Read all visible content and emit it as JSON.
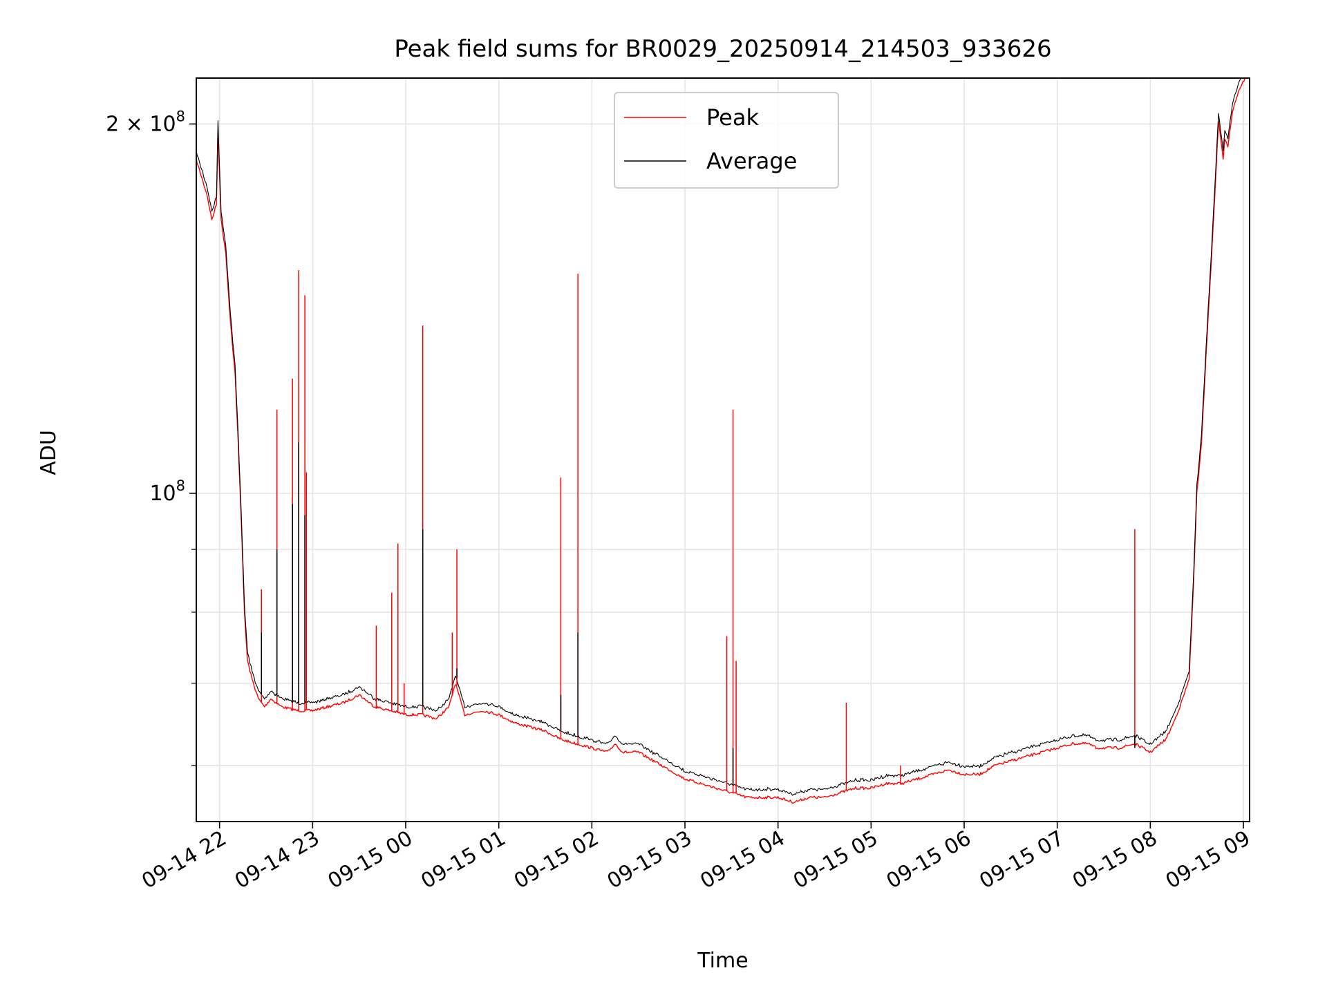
{
  "chart_data": {
    "type": "line",
    "title": "Peak field sums for BR0029_20250914_214503_933626",
    "xlabel": "Time",
    "ylabel": "ADU",
    "y_scale": "log",
    "grid": true,
    "legend_position": "upper center",
    "xlim": [
      "2025-09-14 21:45",
      "2025-09-15 09:04"
    ],
    "ylim": [
      54000000,
      218000000
    ],
    "x_ticks": [
      {
        "t": "2025-09-14 22:00",
        "label": "09-14 22"
      },
      {
        "t": "2025-09-14 23:00",
        "label": "09-14 23"
      },
      {
        "t": "2025-09-15 00:00",
        "label": "09-15 00"
      },
      {
        "t": "2025-09-15 01:00",
        "label": "09-15 01"
      },
      {
        "t": "2025-09-15 02:00",
        "label": "09-15 02"
      },
      {
        "t": "2025-09-15 03:00",
        "label": "09-15 03"
      },
      {
        "t": "2025-09-15 04:00",
        "label": "09-15 04"
      },
      {
        "t": "2025-09-15 05:00",
        "label": "09-15 05"
      },
      {
        "t": "2025-09-15 06:00",
        "label": "09-15 06"
      },
      {
        "t": "2025-09-15 07:00",
        "label": "09-15 07"
      },
      {
        "t": "2025-09-15 08:00",
        "label": "09-15 08"
      },
      {
        "t": "2025-09-15 09:00",
        "label": "09-15 09"
      }
    ],
    "y_ticks": [
      {
        "value": 100000000,
        "base": "10",
        "exp": "8",
        "mantissa": ""
      },
      {
        "value": 200000000,
        "base": "10",
        "exp": "8",
        "mantissa": "2 × "
      }
    ],
    "y_minor_ticks": [
      60000000,
      70000000,
      80000000,
      90000000
    ],
    "series": [
      {
        "name": "Peak",
        "color": "#ff0000",
        "points": [
          [
            "2025-09-14 21:45",
            187000000
          ],
          [
            "2025-09-14 21:49",
            180000000
          ],
          [
            "2025-09-14 21:52",
            175000000
          ],
          [
            "2025-09-14 21:55",
            167000000
          ],
          [
            "2025-09-14 21:58",
            172000000
          ],
          [
            "2025-09-14 21:59",
            198000000
          ],
          [
            "2025-09-14 22:01",
            167000000
          ],
          [
            "2025-09-14 22:04",
            157000000
          ],
          [
            "2025-09-14 22:07",
            138000000
          ],
          [
            "2025-09-14 22:10",
            125000000
          ],
          [
            "2025-09-14 22:12",
            110000000
          ],
          [
            "2025-09-14 22:14",
            95000000
          ],
          [
            "2025-09-14 22:16",
            80000000
          ],
          [
            "2025-09-14 22:18",
            73000000
          ],
          [
            "2025-09-14 22:21",
            70500000
          ],
          [
            "2025-09-14 22:25",
            68000000
          ],
          [
            "2025-09-14 22:29",
            67000000
          ],
          [
            "2025-09-14 22:33",
            68000000
          ],
          [
            "2025-09-14 22:40",
            67000000
          ],
          [
            "2025-09-14 22:50",
            66500000
          ],
          [
            "2025-09-14 23:00",
            66500000
          ],
          [
            "2025-09-14 23:10",
            67000000
          ],
          [
            "2025-09-14 23:20",
            67500000
          ],
          [
            "2025-09-14 23:30",
            68500000
          ],
          [
            "2025-09-14 23:40",
            67000000
          ],
          [
            "2025-09-14 23:50",
            66500000
          ],
          [
            "2025-09-15 00:00",
            66000000
          ],
          [
            "2025-09-15 00:10",
            66000000
          ],
          [
            "2025-09-15 00:20",
            65500000
          ],
          [
            "2025-09-15 00:28",
            67000000
          ],
          [
            "2025-09-15 00:32",
            70000000
          ],
          [
            "2025-09-15 00:38",
            66000000
          ],
          [
            "2025-09-15 00:50",
            66500000
          ],
          [
            "2025-09-15 01:00",
            66000000
          ],
          [
            "2025-09-15 01:10",
            65000000
          ],
          [
            "2025-09-15 01:20",
            64500000
          ],
          [
            "2025-09-15 01:30",
            64000000
          ],
          [
            "2025-09-15 01:40",
            63000000
          ],
          [
            "2025-09-15 01:50",
            62500000
          ],
          [
            "2025-09-15 02:00",
            62000000
          ],
          [
            "2025-09-15 02:10",
            61500000
          ],
          [
            "2025-09-15 02:15",
            62500000
          ],
          [
            "2025-09-15 02:20",
            61500000
          ],
          [
            "2025-09-15 02:30",
            61500000
          ],
          [
            "2025-09-15 02:40",
            60500000
          ],
          [
            "2025-09-15 02:50",
            59500000
          ],
          [
            "2025-09-15 03:00",
            58500000
          ],
          [
            "2025-09-15 03:10",
            58000000
          ],
          [
            "2025-09-15 03:20",
            57500000
          ],
          [
            "2025-09-15 03:30",
            57000000
          ],
          [
            "2025-09-15 03:40",
            56500000
          ],
          [
            "2025-09-15 03:50",
            56500000
          ],
          [
            "2025-09-15 04:00",
            56500000
          ],
          [
            "2025-09-15 04:10",
            56000000
          ],
          [
            "2025-09-15 04:20",
            56500000
          ],
          [
            "2025-09-15 04:30",
            56500000
          ],
          [
            "2025-09-15 04:40",
            57000000
          ],
          [
            "2025-09-15 04:50",
            57500000
          ],
          [
            "2025-09-15 05:00",
            57500000
          ],
          [
            "2025-09-15 05:10",
            58000000
          ],
          [
            "2025-09-15 05:20",
            58000000
          ],
          [
            "2025-09-15 05:30",
            58500000
          ],
          [
            "2025-09-15 05:40",
            59000000
          ],
          [
            "2025-09-15 05:50",
            59500000
          ],
          [
            "2025-09-15 06:00",
            59000000
          ],
          [
            "2025-09-15 06:10",
            59000000
          ],
          [
            "2025-09-15 06:20",
            60000000
          ],
          [
            "2025-09-15 06:30",
            60500000
          ],
          [
            "2025-09-15 06:40",
            61000000
          ],
          [
            "2025-09-15 06:50",
            61500000
          ],
          [
            "2025-09-15 07:00",
            62000000
          ],
          [
            "2025-09-15 07:10",
            62500000
          ],
          [
            "2025-09-15 07:20",
            62500000
          ],
          [
            "2025-09-15 07:25",
            62000000
          ],
          [
            "2025-09-15 07:40",
            62000000
          ],
          [
            "2025-09-15 07:50",
            62500000
          ],
          [
            "2025-09-15 08:00",
            61500000
          ],
          [
            "2025-09-15 08:10",
            63000000
          ],
          [
            "2025-09-15 08:15",
            65000000
          ],
          [
            "2025-09-15 08:20",
            67500000
          ],
          [
            "2025-09-15 08:25",
            70500000
          ],
          [
            "2025-09-15 08:28",
            85000000
          ],
          [
            "2025-09-15 08:30",
            100000000
          ],
          [
            "2025-09-15 08:33",
            110000000
          ],
          [
            "2025-09-15 08:36",
            130000000
          ],
          [
            "2025-09-15 08:40",
            160000000
          ],
          [
            "2025-09-15 08:44",
            201000000
          ],
          [
            "2025-09-15 08:46",
            192000000
          ],
          [
            "2025-09-15 08:47",
            187000000
          ],
          [
            "2025-09-15 08:48",
            194000000
          ],
          [
            "2025-09-15 08:50",
            192000000
          ],
          [
            "2025-09-15 08:53",
            205000000
          ],
          [
            "2025-09-15 08:57",
            213000000
          ],
          [
            "2025-09-15 09:01",
            218000000
          ],
          [
            "2025-09-15 09:04",
            218000000
          ]
        ],
        "spikes": [
          [
            "2025-09-14 22:27",
            83500000
          ],
          [
            "2025-09-14 22:37",
            117000000
          ],
          [
            "2025-09-14 22:47",
            124000000
          ],
          [
            "2025-09-14 22:51",
            152000000
          ],
          [
            "2025-09-14 22:55",
            145000000
          ],
          [
            "2025-09-14 22:56",
            104000000
          ],
          [
            "2025-09-14 23:41",
            78000000
          ],
          [
            "2025-09-14 23:51",
            83000000
          ],
          [
            "2025-09-14 23:55",
            91000000
          ],
          [
            "2025-09-14 23:59",
            70000000
          ],
          [
            "2025-09-15 00:11",
            137000000
          ],
          [
            "2025-09-15 00:30",
            77000000
          ],
          [
            "2025-09-15 00:33",
            90000000
          ],
          [
            "2025-09-15 01:40",
            103000000
          ],
          [
            "2025-09-15 01:51",
            151000000
          ],
          [
            "2025-09-15 03:27",
            76500000
          ],
          [
            "2025-09-15 03:31",
            117000000
          ],
          [
            "2025-09-15 03:33",
            73000000
          ],
          [
            "2025-09-15 04:44",
            67500000
          ],
          [
            "2025-09-15 05:19",
            60000000
          ],
          [
            "2025-09-15 07:50",
            93500000
          ]
        ]
      },
      {
        "name": "Average",
        "color": "#000000",
        "offset_ratio": 0.985,
        "spikes": [
          [
            "2025-09-14 22:27",
            77000000
          ],
          [
            "2025-09-14 22:37",
            90000000
          ],
          [
            "2025-09-14 22:47",
            98000000
          ],
          [
            "2025-09-14 22:51",
            110000000
          ],
          [
            "2025-09-14 22:55",
            96000000
          ],
          [
            "2025-09-15 00:11",
            93500000
          ],
          [
            "2025-09-15 00:33",
            72000000
          ],
          [
            "2025-09-15 01:40",
            68500000
          ],
          [
            "2025-09-15 01:51",
            77000000
          ],
          [
            "2025-09-15 03:31",
            62000000
          ],
          [
            "2025-09-15 07:50",
            62000000
          ]
        ]
      }
    ]
  }
}
